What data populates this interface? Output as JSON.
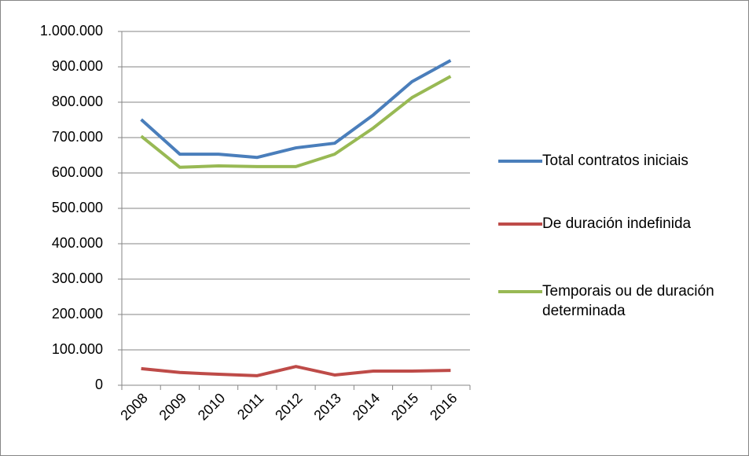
{
  "chart_data": {
    "type": "line",
    "categories": [
      "2008",
      "2009",
      "2010",
      "2011",
      "2012",
      "2013",
      "2014",
      "2015",
      "2016"
    ],
    "series": [
      {
        "name": "Total contratos iniciais",
        "color": "#4a7ebb",
        "values": [
          751000,
          653000,
          653000,
          644000,
          671000,
          684000,
          764000,
          858000,
          918000
        ]
      },
      {
        "name": "De duración indefinida",
        "color": "#be4b48",
        "values": [
          47000,
          36000,
          31000,
          27000,
          53000,
          29000,
          40000,
          40000,
          42000
        ]
      },
      {
        "name": "Temporais ou de duración determinada",
        "color": "#98b954",
        "values": [
          704000,
          616000,
          620000,
          618000,
          618000,
          653000,
          727000,
          813000,
          873000
        ]
      }
    ],
    "ylim": [
      0,
      1000000
    ],
    "yticks": [
      0,
      {
        "value": 100000,
        "label": "100.000"
      },
      {
        "value": 200000,
        "label": "200.000"
      },
      {
        "value": 300000,
        "label": "300.000"
      },
      {
        "value": 400000,
        "label": "400.000"
      },
      {
        "value": 500000,
        "label": "500.000"
      },
      {
        "value": 600000,
        "label": "600.000"
      },
      {
        "value": 700000,
        "label": "700.000"
      },
      {
        "value": 800000,
        "label": "800.000"
      },
      {
        "value": 900000,
        "label": "900.000"
      },
      {
        "value": 1000000,
        "label": "1.000.000"
      }
    ],
    "grid": true,
    "legend": "right"
  }
}
